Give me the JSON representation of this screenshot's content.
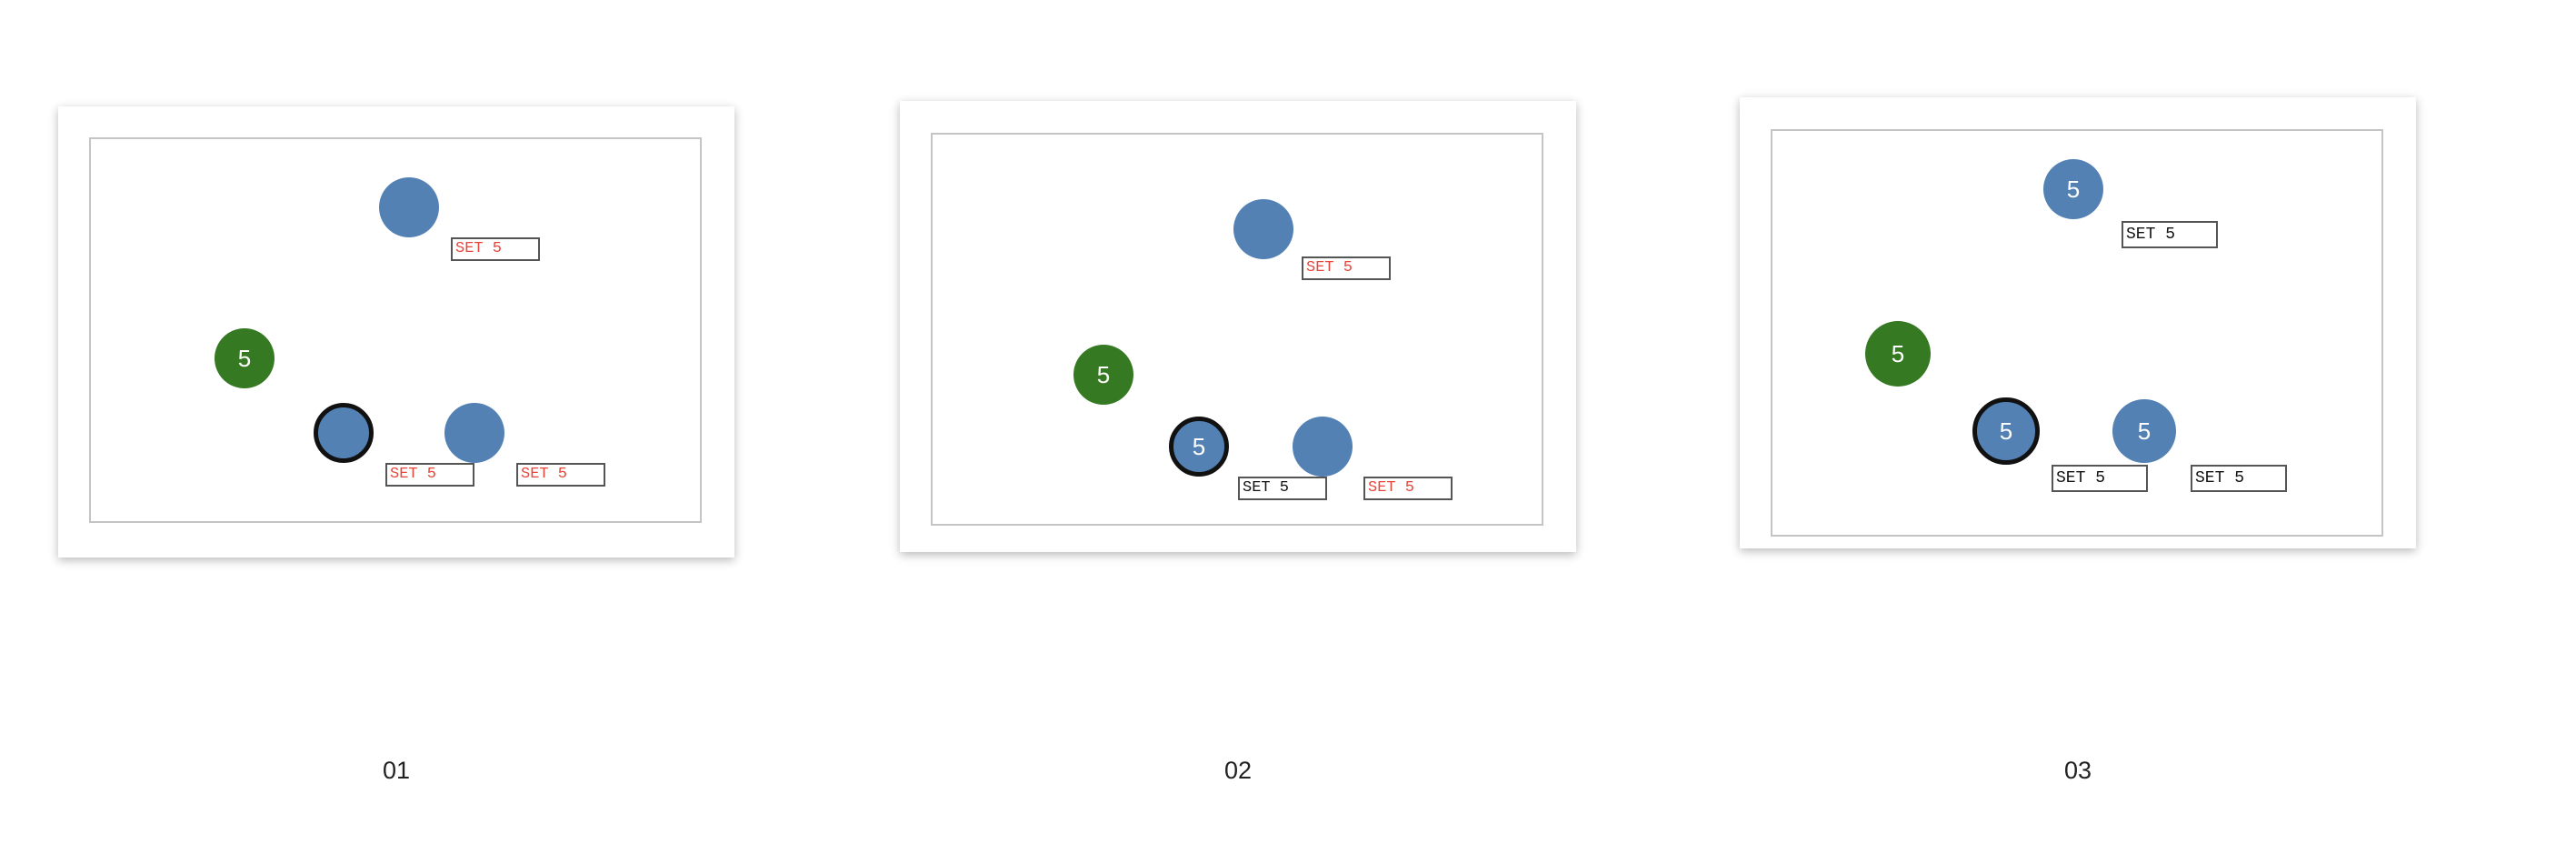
{
  "colors": {
    "node_blue": "#5381b4",
    "node_green": "#357a22",
    "pending_text": "#e8453a",
    "applied_text": "#111111",
    "selected_ring": "#111111"
  },
  "panels": [
    {
      "label": "01",
      "green_node": {
        "value": "5"
      },
      "top_node": {
        "value": "",
        "set_label": "SET 5",
        "set_state": "pending"
      },
      "selected_node": {
        "value": "",
        "set_label": "SET 5",
        "set_state": "pending"
      },
      "right_node": {
        "value": "",
        "set_label": "SET 5",
        "set_state": "pending"
      }
    },
    {
      "label": "02",
      "green_node": {
        "value": "5"
      },
      "top_node": {
        "value": "",
        "set_label": "SET 5",
        "set_state": "pending"
      },
      "selected_node": {
        "value": "5",
        "set_label": "SET 5",
        "set_state": "applied"
      },
      "right_node": {
        "value": "",
        "set_label": "SET 5",
        "set_state": "pending"
      }
    },
    {
      "label": "03",
      "green_node": {
        "value": "5"
      },
      "top_node": {
        "value": "5",
        "set_label": "SET 5",
        "set_state": "applied"
      },
      "selected_node": {
        "value": "5",
        "set_label": "SET 5",
        "set_state": "applied"
      },
      "right_node": {
        "value": "5",
        "set_label": "SET 5",
        "set_state": "applied"
      }
    }
  ]
}
